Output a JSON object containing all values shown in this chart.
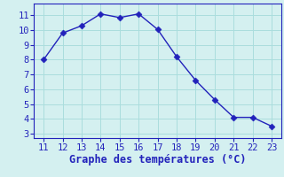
{
  "x_data": [
    11,
    12,
    13,
    14,
    15,
    16,
    17,
    18,
    19,
    20,
    21,
    22,
    23
  ],
  "y_data": [
    8.0,
    9.8,
    10.3,
    11.1,
    10.85,
    11.1,
    10.05,
    8.2,
    6.6,
    5.3,
    4.1,
    4.1,
    3.5
  ],
  "xlabel": "Graphe des températures (°C)",
  "xlim": [
    10.5,
    23.5
  ],
  "ylim": [
    2.7,
    11.8
  ],
  "yticks": [
    3,
    4,
    5,
    6,
    7,
    8,
    9,
    10,
    11
  ],
  "xticks": [
    11,
    12,
    13,
    14,
    15,
    16,
    17,
    18,
    19,
    20,
    21,
    22,
    23
  ],
  "line_color": "#2222bb",
  "marker_color": "#2222bb",
  "bg_color": "#d4f0f0",
  "grid_color": "#aadddd",
  "spine_color": "#2222bb",
  "label_color": "#2222bb",
  "tick_color": "#2222bb",
  "tick_fontsize": 7.5,
  "xlabel_fontsize": 8.5,
  "line_width": 1.0,
  "marker_size": 3.5
}
